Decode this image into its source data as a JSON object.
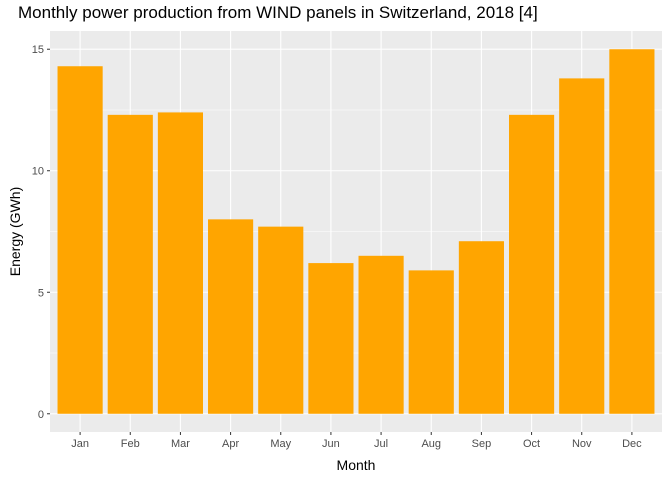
{
  "chart_data": {
    "type": "bar",
    "title": "Monthly power production from WIND panels in Switzerland, 2018 [4]",
    "xlabel": "Month",
    "ylabel": "Energy (GWh)",
    "categories": [
      "Jan",
      "Feb",
      "Mar",
      "Apr",
      "May",
      "Jun",
      "Jul",
      "Aug",
      "Sep",
      "Oct",
      "Nov",
      "Dec"
    ],
    "values": [
      14.3,
      12.3,
      12.4,
      8.0,
      7.7,
      6.2,
      6.5,
      5.9,
      7.1,
      12.3,
      13.8,
      15.0
    ],
    "ylim": [
      -0.75,
      15.75
    ],
    "yticks": [
      0,
      5,
      10,
      15
    ],
    "ytick_labels": [
      "0",
      "5",
      "10",
      "15"
    ],
    "grid": true,
    "bar_color": "#FFA500",
    "panel_background": "#EBEBEB",
    "grid_color": "#FFFFFF"
  }
}
